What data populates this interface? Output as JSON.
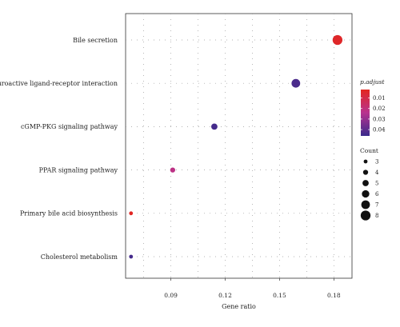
{
  "chart_data": {
    "type": "scatter",
    "xlabel": "Gene ratio",
    "ylabel": "",
    "xlim": [
      0.065,
      0.19
    ],
    "x_ticks": [
      0.09,
      0.12,
      0.15,
      0.18
    ],
    "x_tick_labels": [
      "0.09",
      "0.12",
      "0.15",
      "0.18"
    ],
    "categories": [
      "Bile secretion",
      "Neuroactive ligand-receptor interaction",
      "cGMP-PKG signaling pathway",
      "PPAR signaling pathway",
      "Primary bile acid biosynthesis",
      "Cholesterol metabolism"
    ],
    "points": [
      {
        "category": "Bile secretion",
        "gene_ratio": 0.182,
        "count": 8,
        "p_adjust": 0.004
      },
      {
        "category": "Neuroactive ligand-receptor interaction",
        "gene_ratio": 0.159,
        "count": 7,
        "p_adjust": 0.043
      },
      {
        "category": "cGMP-PKG signaling pathway",
        "gene_ratio": 0.114,
        "count": 5,
        "p_adjust": 0.044
      },
      {
        "category": "PPAR signaling pathway",
        "gene_ratio": 0.091,
        "count": 4,
        "p_adjust": 0.022
      },
      {
        "category": "Primary bile acid biosynthesis",
        "gene_ratio": 0.068,
        "count": 3,
        "p_adjust": 0.003
      },
      {
        "category": "Cholesterol metabolism",
        "gene_ratio": 0.068,
        "count": 3,
        "p_adjust": 0.044
      }
    ],
    "grid": true,
    "grid_style": "dotted",
    "legend_position": "right",
    "color_legend": {
      "title": "p.adjust",
      "ticks": [
        0.01,
        0.02,
        0.03,
        0.04
      ],
      "tick_labels": [
        "0.01",
        "0.02",
        "0.03",
        "0.04"
      ],
      "range": [
        0.002,
        0.046
      ],
      "color_low": "#e3261f",
      "color_mid": "#b8338f",
      "color_high": "#3a2a8c"
    },
    "size_legend": {
      "title": "Count",
      "values": [
        3,
        4,
        5,
        6,
        7,
        8
      ],
      "labels": [
        "3",
        "4",
        "5",
        "6",
        "7",
        "8"
      ]
    }
  }
}
